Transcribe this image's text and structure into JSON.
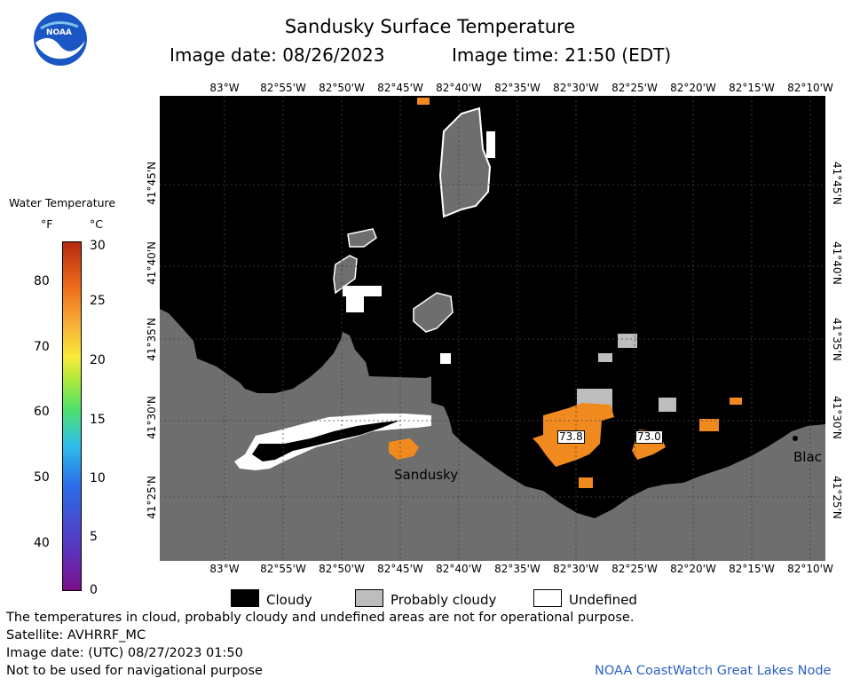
{
  "header": {
    "title": "Sandusky Surface Temperature",
    "image_date": "Image date: 08/26/2023",
    "image_time": "Image time: 21:50 (EDT)"
  },
  "logo": {
    "text": "NOAA"
  },
  "map": {
    "longitude_labels": [
      "83°W",
      "82°55'W",
      "82°50'W",
      "82°45'W",
      "82°40'W",
      "82°35'W",
      "82°30'W",
      "82°25'W",
      "82°20'W",
      "82°15'W",
      "82°10'W"
    ],
    "latitude_labels": [
      "41°45'N",
      "41°40'N",
      "41°35'N",
      "41°30'N",
      "41°25'N"
    ],
    "place_labels": {
      "sandusky": "Sandusky",
      "blac": "Blac"
    },
    "temperature_labels": [
      "73.8",
      "73.0"
    ],
    "colors": {
      "land": "#6e6e6e",
      "cloudy": "#000000",
      "probably_cloudy": "#bdbdbd",
      "undefined": "#ffffff",
      "warm_water": "#f08a1e"
    }
  },
  "legend": {
    "title": "Water Temperature",
    "unit_f": "°F",
    "unit_c": "°C",
    "fahrenheit_ticks": [
      "40",
      "50",
      "60",
      "70",
      "80"
    ],
    "celsius_ticks": [
      "0",
      "5",
      "10",
      "15",
      "20",
      "25",
      "30"
    ]
  },
  "key": {
    "cloudy": "Cloudy",
    "probably_cloudy": "Probably cloudy",
    "undefined": "Undefined"
  },
  "footer": {
    "line1": "The temperatures in cloud, probably cloudy and undefined areas are not for operational purpose.",
    "line2": "Satellite: AVHRRF_MC",
    "line3": "Image date: (UTC) 08/27/2023  01:50",
    "line4": "Not to be used for navigational purpose",
    "credit": "NOAA CoastWatch Great Lakes Node"
  }
}
